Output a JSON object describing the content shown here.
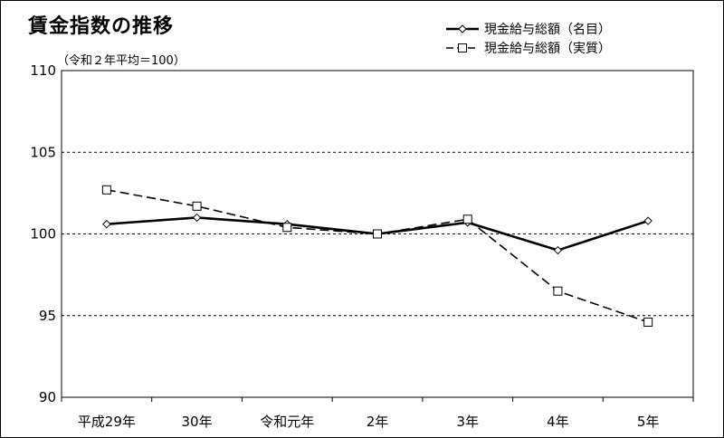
{
  "chart_data": {
    "type": "line",
    "title": "賃金指数の推移",
    "subtitle": "（令和２年平均＝100）",
    "categories": [
      "平成29年",
      "30年",
      "令和元年",
      "2年",
      "3年",
      "4年",
      "5年"
    ],
    "ylim": [
      90,
      110
    ],
    "yticks": [
      "90",
      "95",
      "100",
      "105",
      "110"
    ],
    "grid": true,
    "legend_position": "top-right",
    "series": [
      {
        "name": "現金給与総額（名目）",
        "values": [
          100.6,
          101.0,
          100.6,
          100.0,
          100.7,
          99.0,
          100.8
        ],
        "line_style": "solid",
        "marker": "diamond",
        "color": "#000000"
      },
      {
        "name": "現金給与総額（実質）",
        "values": [
          102.7,
          101.7,
          100.4,
          100.0,
          100.9,
          96.5,
          94.6
        ],
        "line_style": "dashed",
        "marker": "square",
        "color": "#000000"
      }
    ]
  }
}
